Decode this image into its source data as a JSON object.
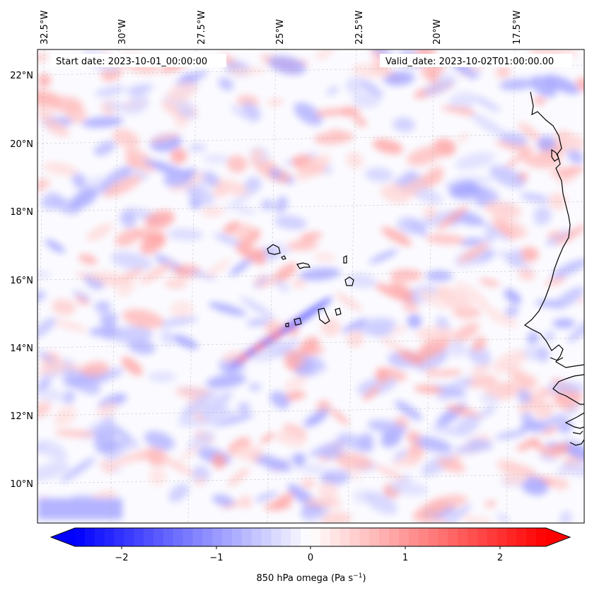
{
  "map": {
    "header_left": "Start date: 2023-10-01_00:00:00",
    "header_right": "Valid_date: 2023-10-02T01:00:00.00",
    "lon_labels": [
      "32.5°W",
      "30°W",
      "27.5°W",
      "25°W",
      "22.5°W",
      "20°W",
      "17.5°W"
    ],
    "lat_labels": [
      "22°N",
      "20°N",
      "18°N",
      "16°N",
      "14°N",
      "12°N",
      "10°N"
    ],
    "gridlines": true,
    "coastline_color": "#000000"
  },
  "colorbar": {
    "ticks": [
      "−2",
      "−1",
      "0",
      "1",
      "2"
    ],
    "label_main": "850 hPa omega (Pa s",
    "label_sup": "−1",
    "label_close": ")",
    "colormap": "bwr",
    "extend": "both",
    "colors": {
      "min": "#0000ff",
      "mid": "#ffffff",
      "max": "#ff0000"
    }
  }
}
